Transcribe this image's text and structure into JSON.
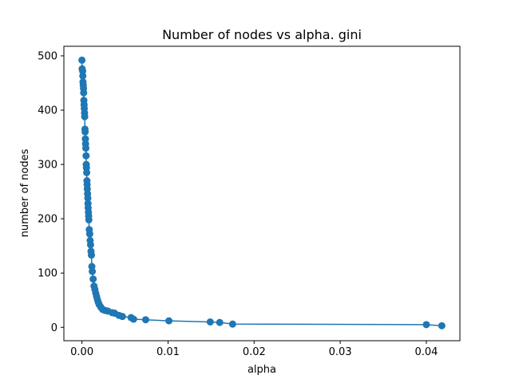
{
  "chart_data": {
    "type": "line",
    "title": "Number of nodes vs alpha. gini",
    "xlabel": "alpha",
    "ylabel": "number of nodes",
    "xlim": [
      -0.0021,
      0.0439
    ],
    "ylim": [
      -24.6,
      517.6
    ],
    "xticks": [
      0.0,
      0.01,
      0.02,
      0.03,
      0.04
    ],
    "xtick_labels": [
      "0.00",
      "0.01",
      "0.02",
      "0.03",
      "0.04"
    ],
    "yticks": [
      0,
      100,
      200,
      300,
      400,
      500
    ],
    "ytick_labels": [
      "0",
      "100",
      "200",
      "300",
      "400",
      "500"
    ],
    "grid": false,
    "color": "#1f77b4",
    "series": [
      {
        "x": [
          0.0,
          2e-05,
          8e-05,
          0.0001,
          0.00012,
          0.00015,
          0.00018,
          0.0002,
          0.00022,
          0.00025,
          0.00027,
          0.0003,
          0.00032,
          0.00035,
          0.00037,
          0.0004,
          0.00042,
          0.00045,
          0.00048,
          0.0005,
          0.00052,
          0.00055,
          0.00058,
          0.0006,
          0.00062,
          0.00065,
          0.00068,
          0.0007,
          0.00072,
          0.00075,
          0.00078,
          0.0008,
          0.00085,
          0.0009,
          0.00095,
          0.001,
          0.00105,
          0.0011,
          0.00115,
          0.0012,
          0.0013,
          0.0014,
          0.0015,
          0.0016,
          0.0017,
          0.0018,
          0.0019,
          0.002,
          0.0022,
          0.0024,
          0.0027,
          0.003,
          0.0035,
          0.0038,
          0.0043,
          0.0047,
          0.0057,
          0.006,
          0.0074,
          0.0101,
          0.0149,
          0.016,
          0.0175,
          0.04,
          0.0418
        ],
        "y": [
          492,
          476,
          472,
          463,
          452,
          446,
          440,
          432,
          418,
          410,
          403,
          395,
          388,
          365,
          360,
          347,
          338,
          330,
          316,
          300,
          294,
          285,
          270,
          263,
          255,
          246,
          238,
          228,
          220,
          212,
          205,
          198,
          180,
          172,
          160,
          152,
          140,
          133,
          112,
          103,
          89,
          76,
          70,
          63,
          57,
          51,
          46,
          42,
          37,
          33,
          31,
          30,
          27,
          26,
          22,
          20,
          18,
          15,
          14,
          12,
          10,
          9,
          6,
          5,
          3
        ]
      }
    ]
  }
}
